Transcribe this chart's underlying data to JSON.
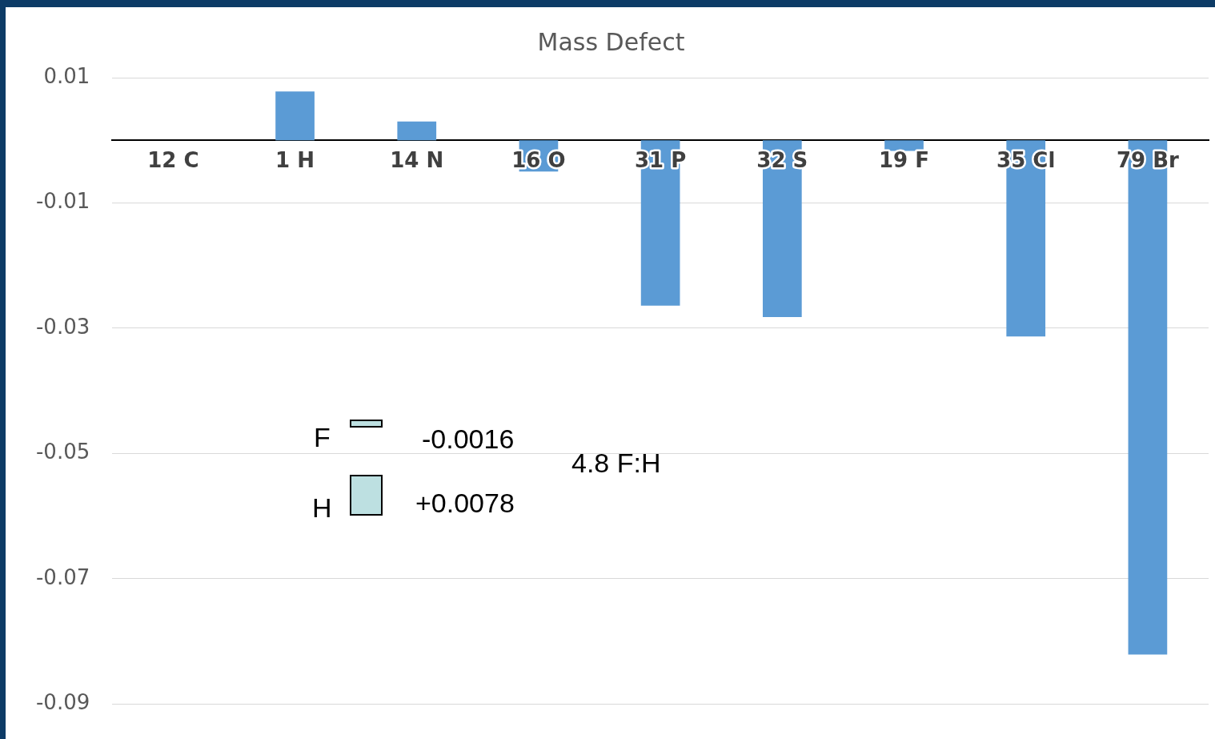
{
  "chart_data": {
    "type": "bar",
    "title": "Mass Defect",
    "categories": [
      "12 C",
      "1 H",
      "14 N",
      "16 O",
      "31 P",
      "32 S",
      "19 F",
      "35 Cl",
      "79 Br"
    ],
    "values": [
      0,
      0.0078,
      0.003,
      -0.005,
      -0.0264,
      -0.0282,
      -0.0017,
      -0.0313,
      -0.0821
    ],
    "color": "#5b9bd5",
    "ylim": [
      -0.09,
      0.01
    ],
    "yticks": [
      0.01,
      -0.01,
      -0.03,
      -0.05,
      -0.07,
      -0.09
    ],
    "grid": "y",
    "legend": false,
    "annotations": [
      "F",
      "-0.0016",
      "H",
      "+0.0078",
      "4.8 F:H"
    ]
  }
}
